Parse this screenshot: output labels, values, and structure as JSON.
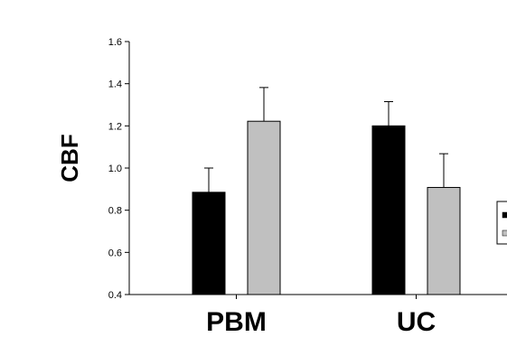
{
  "chart_data": {
    "type": "bar",
    "ylabel": "CBF",
    "xlabel": "",
    "categories": [
      "PBM",
      "UC"
    ],
    "series": [
      {
        "color": "#000000",
        "values": [
          0.885,
          1.2
        ],
        "errors": [
          0.115,
          0.115
        ]
      },
      {
        "color": "#c0c0c0",
        "values": [
          1.222,
          0.908
        ],
        "errors": [
          0.16,
          0.16
        ]
      }
    ],
    "ylim": [
      0.4,
      1.6
    ],
    "yticks": [
      "0.4",
      "0.6",
      "0.8",
      "1.0",
      "1.2",
      "1.4",
      "1.6"
    ],
    "grid": false,
    "legend": "right (partially cropped, labels not visible)"
  }
}
